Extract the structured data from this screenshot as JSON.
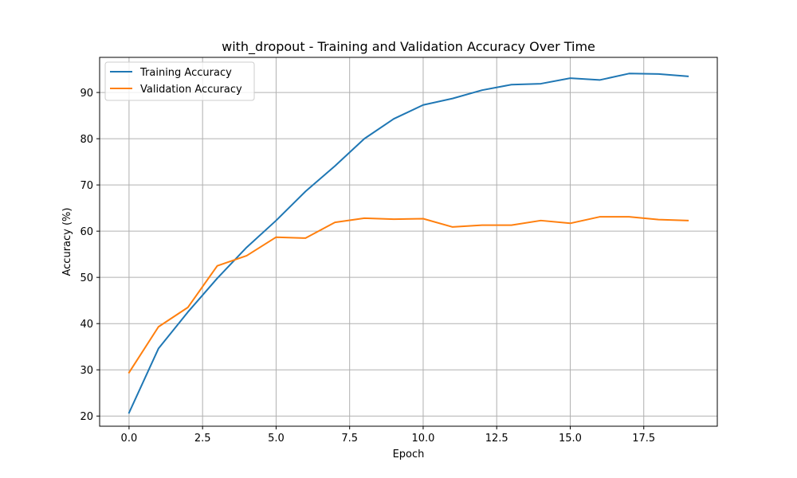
{
  "chart_data": {
    "type": "line",
    "title": "with_dropout - Training and Validation Accuracy Over Time",
    "xlabel": "Epoch",
    "ylabel": "Accuracy (%)",
    "xlim": [
      -1.0,
      20.0
    ],
    "ylim": [
      17.8,
      97.6
    ],
    "x_ticks": [
      0.0,
      2.5,
      5.0,
      7.5,
      10.0,
      12.5,
      15.0,
      17.5
    ],
    "x_tick_labels": [
      "0.0",
      "2.5",
      "5.0",
      "7.5",
      "10.0",
      "12.5",
      "15.0",
      "17.5"
    ],
    "y_ticks": [
      20,
      30,
      40,
      50,
      60,
      70,
      80,
      90
    ],
    "y_tick_labels": [
      "20",
      "30",
      "40",
      "50",
      "60",
      "70",
      "80",
      "90"
    ],
    "grid": true,
    "legend_position": "top-left",
    "x": [
      0,
      1,
      2,
      3,
      4,
      5,
      6,
      7,
      8,
      9,
      10,
      11,
      12,
      13,
      14,
      15,
      16,
      17,
      18,
      19
    ],
    "series": [
      {
        "name": "Training Accuracy",
        "color": "#1f77b4",
        "values": [
          20.7,
          34.6,
          42.5,
          49.8,
          56.5,
          62.3,
          68.6,
          74.1,
          80.0,
          84.3,
          87.3,
          88.7,
          90.5,
          91.7,
          91.9,
          93.1,
          92.7,
          94.1,
          94.0,
          93.5
        ]
      },
      {
        "name": "Validation Accuracy",
        "color": "#ff7f0e",
        "values": [
          29.4,
          39.3,
          43.5,
          52.5,
          54.7,
          58.7,
          58.5,
          61.9,
          62.8,
          62.6,
          62.7,
          60.9,
          61.3,
          61.3,
          62.3,
          61.7,
          63.1,
          63.1,
          62.5,
          62.3
        ]
      }
    ]
  }
}
